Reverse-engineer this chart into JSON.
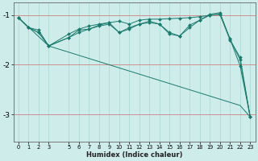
{
  "xlabel": "Humidex (Indice chaleur)",
  "background_color": "#ceecea",
  "line_color": "#1a7a6e",
  "xlim": [
    -0.5,
    23.5
  ],
  "ylim": [
    -3.55,
    -0.75
  ],
  "yticks": [
    -3,
    -2,
    -1
  ],
  "ytick_labels": [
    "-3",
    "-2",
    "-1"
  ],
  "xticks": [
    0,
    1,
    2,
    3,
    5,
    6,
    7,
    8,
    9,
    10,
    11,
    12,
    13,
    14,
    15,
    16,
    17,
    18,
    19,
    20,
    21,
    22,
    23
  ],
  "series": [
    {
      "x": [
        0,
        1,
        2,
        3,
        5,
        6,
        7,
        8,
        9,
        10,
        11,
        12,
        13,
        14,
        15,
        16,
        17,
        18,
        19,
        20,
        21,
        22,
        23
      ],
      "y": [
        -1.05,
        -1.25,
        -1.3,
        -1.62,
        -1.38,
        -1.28,
        -1.22,
        -1.18,
        -1.15,
        -1.12,
        -1.18,
        -1.1,
        -1.08,
        -1.08,
        -1.07,
        -1.06,
        -1.05,
        -1.03,
        -1.0,
        -0.98,
        -1.48,
        -2.02,
        -3.05
      ],
      "marker": true
    },
    {
      "x": [
        0,
        1,
        2,
        3,
        5,
        6,
        7,
        8,
        9,
        10,
        11,
        12,
        13,
        14,
        15,
        16,
        17,
        18,
        19,
        20,
        21,
        22,
        23
      ],
      "y": [
        -1.05,
        -1.25,
        -1.35,
        -1.62,
        -1.45,
        -1.35,
        -1.28,
        -1.22,
        -1.18,
        -1.35,
        -1.28,
        -1.18,
        -1.15,
        -1.18,
        -1.38,
        -1.42,
        -1.2,
        -1.1,
        -1.0,
        -0.98,
        -1.5,
        -1.85,
        -3.05
      ],
      "marker": true
    },
    {
      "x": [
        0,
        1,
        2,
        3,
        5,
        6,
        7,
        8,
        9,
        10,
        11,
        12,
        13,
        14,
        15,
        16,
        17,
        18,
        19,
        20,
        21,
        22,
        23
      ],
      "y": [
        -1.05,
        -1.25,
        -1.35,
        -1.62,
        -1.45,
        -1.3,
        -1.28,
        -1.2,
        -1.15,
        -1.35,
        -1.25,
        -1.18,
        -1.12,
        -1.18,
        -1.35,
        -1.42,
        -1.25,
        -1.1,
        -0.98,
        -0.95,
        -1.48,
        -1.9,
        -3.05
      ],
      "marker": true
    },
    {
      "x": [
        0,
        3,
        22,
        23
      ],
      "y": [
        -1.05,
        -1.62,
        -2.82,
        -3.05
      ],
      "marker": false
    }
  ]
}
